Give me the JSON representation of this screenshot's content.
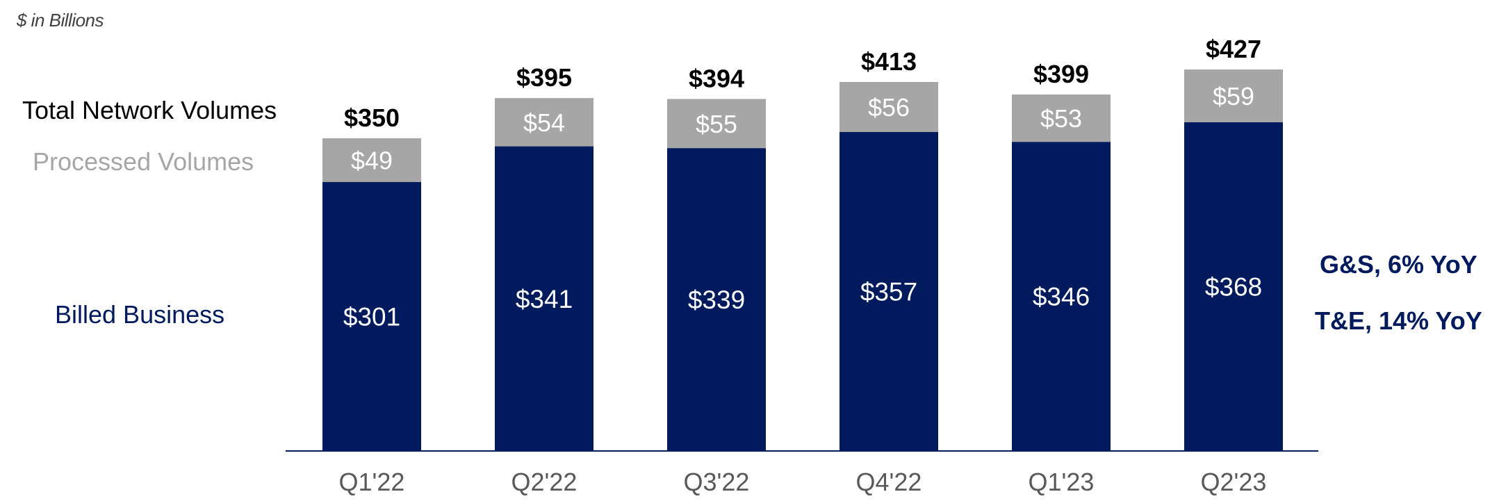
{
  "units_label": "$ in Billions",
  "legend": {
    "total": "Total Network Volumes",
    "processed": "Processed Volumes",
    "billed": "Billed Business"
  },
  "notes": {
    "gs": "G&S, 6% YoY",
    "te": "T&E, 14% YoY"
  },
  "colors": {
    "billed": "#001A5E",
    "processed": "#A6A6A6",
    "total_label": "#000000",
    "axis_label": "#595959"
  },
  "chart_data": {
    "type": "bar",
    "stacked": true,
    "categories": [
      "Q1'22",
      "Q2'22",
      "Q3'22",
      "Q4'22",
      "Q1'23",
      "Q2'23"
    ],
    "series": [
      {
        "name": "Billed Business",
        "values": [
          301,
          341,
          339,
          357,
          346,
          368
        ],
        "labels": [
          "$301",
          "$341",
          "$339",
          "$357",
          "$346",
          "$368"
        ]
      },
      {
        "name": "Processed Volumes",
        "values": [
          49,
          54,
          55,
          56,
          53,
          59
        ],
        "labels": [
          "$49",
          "$54",
          "$55",
          "$56",
          "$53",
          "$59"
        ]
      }
    ],
    "totals": {
      "name": "Total Network Volumes",
      "values": [
        350,
        395,
        394,
        413,
        399,
        427
      ],
      "labels": [
        "$350",
        "$395",
        "$394",
        "$413",
        "$399",
        "$427"
      ]
    },
    "ylim": [
      0,
      427
    ],
    "grid": false
  }
}
